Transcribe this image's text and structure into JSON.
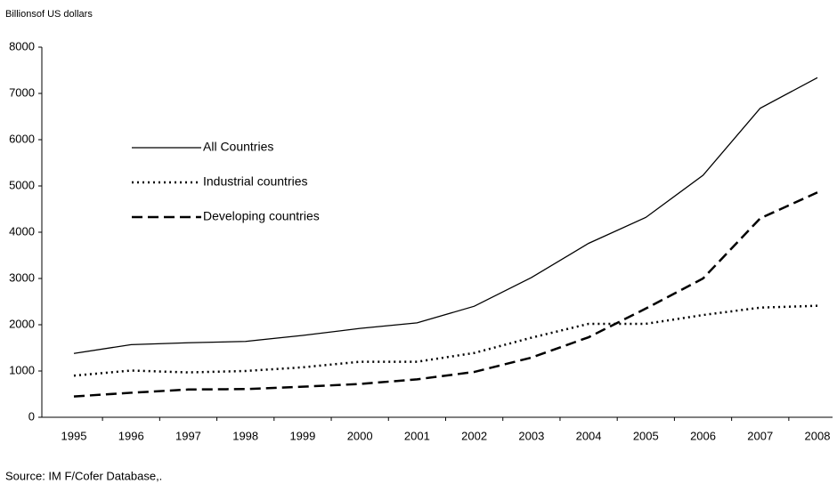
{
  "chart_data": {
    "type": "line",
    "y_label": "Billionsof US dollars",
    "source": "Source: IM F/Cofer Database,.",
    "categories": [
      "1995",
      "1996",
      "1997",
      "1998",
      "1999",
      "2000",
      "2001",
      "2002",
      "2003",
      "2004",
      "2005",
      "2006",
      "2007",
      "2008"
    ],
    "series": [
      {
        "name": "All Countries",
        "color": "#000000",
        "style": "solid",
        "values": [
          1380,
          1570,
          1610,
          1640,
          1770,
          1920,
          2040,
          2400,
          3020,
          3760,
          4320,
          5230,
          6680,
          7340
        ]
      },
      {
        "name": "Industrial countries",
        "color": "#000000",
        "style": "dotted",
        "values": [
          900,
          1010,
          970,
          1000,
          1080,
          1200,
          1200,
          1390,
          1720,
          2020,
          2020,
          2210,
          2370,
          2410
        ]
      },
      {
        "name": "Developing countries",
        "color": "#000000",
        "style": "dashed",
        "values": [
          450,
          530,
          600,
          610,
          660,
          720,
          820,
          980,
          1290,
          1730,
          2350,
          3000,
          4300,
          4860
        ]
      }
    ],
    "ylim": [
      0,
      8000
    ],
    "yticks": [
      0,
      1000,
      2000,
      3000,
      4000,
      5000,
      6000,
      7000,
      8000
    ],
    "grid": false,
    "legend": "upper left"
  }
}
